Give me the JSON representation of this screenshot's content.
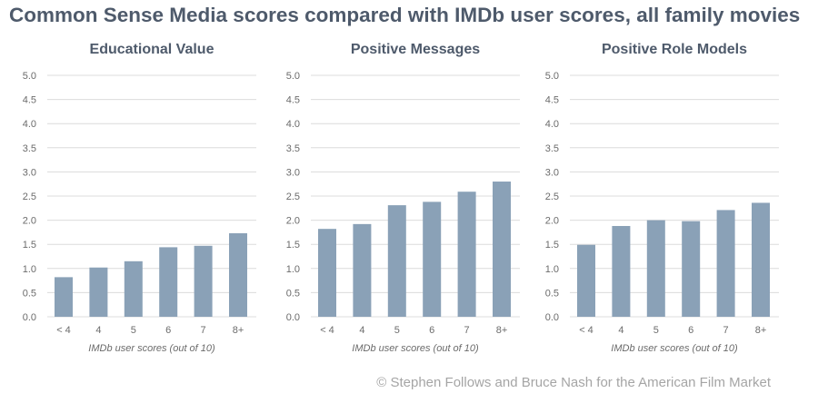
{
  "title": "Common Sense Media scores compared with IMDb user scores, all family movies",
  "credit": "© Stephen Follows and Bruce Nash for the American Film Market",
  "colors": {
    "bar": "#8aa1b7",
    "title": "#4e5a6b"
  },
  "chart_data": [
    {
      "type": "bar",
      "title": "Educational Value",
      "categories": [
        "< 4",
        "4",
        "5",
        "6",
        "7",
        "8+"
      ],
      "values": [
        0.82,
        1.02,
        1.15,
        1.44,
        1.47,
        1.73
      ],
      "xlabel": "IMDb user scores (out of 10)",
      "ylabel": "",
      "ylim": [
        0,
        5
      ],
      "yticks": [
        "0.0",
        "0.5",
        "1.0",
        "1.5",
        "2.0",
        "2.5",
        "3.0",
        "3.5",
        "4.0",
        "4.5",
        "5.0"
      ]
    },
    {
      "type": "bar",
      "title": "Positive Messages",
      "categories": [
        "< 4",
        "4",
        "5",
        "6",
        "7",
        "8+"
      ],
      "values": [
        1.82,
        1.92,
        2.31,
        2.38,
        2.59,
        2.8
      ],
      "xlabel": "IMDb user scores (out of 10)",
      "ylabel": "",
      "ylim": [
        0,
        5
      ],
      "yticks": [
        "0.0",
        "0.5",
        "1.0",
        "1.5",
        "2.0",
        "2.5",
        "3.0",
        "3.5",
        "4.0",
        "4.5",
        "5.0"
      ]
    },
    {
      "type": "bar",
      "title": "Positive Role Models",
      "categories": [
        "< 4",
        "4",
        "5",
        "6",
        "7",
        "8+"
      ],
      "values": [
        1.49,
        1.88,
        2.0,
        1.98,
        2.21,
        2.36
      ],
      "xlabel": "IMDb user scores (out of 10)",
      "ylabel": "",
      "ylim": [
        0,
        5
      ],
      "yticks": [
        "0.0",
        "0.5",
        "1.0",
        "1.5",
        "2.0",
        "2.5",
        "3.0",
        "3.5",
        "4.0",
        "4.5",
        "5.0"
      ]
    }
  ]
}
